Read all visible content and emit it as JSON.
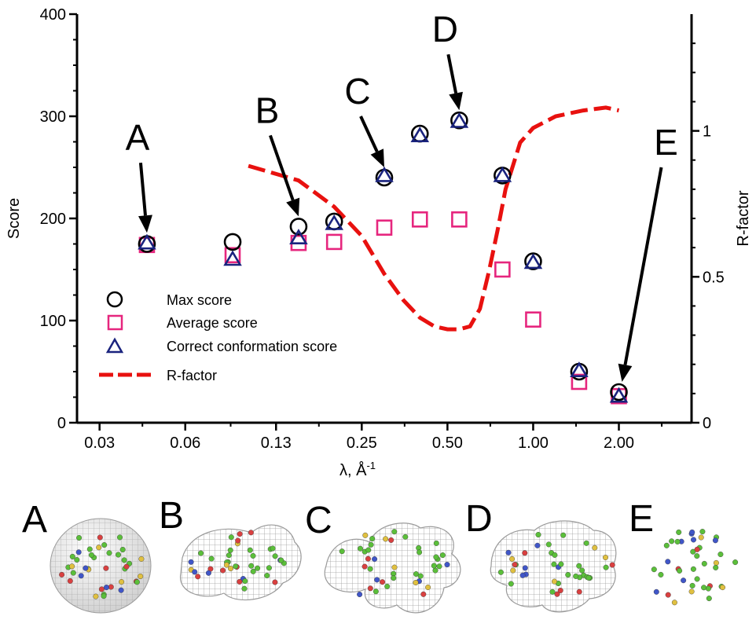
{
  "chart_data": {
    "type": "scatter",
    "x_scale": "log",
    "xlabel": "λ, Å",
    "xlabel_sup": "-1",
    "ylabel": "Score",
    "y2label": "R-factor",
    "ylim": [
      0,
      400
    ],
    "y2lim": [
      0,
      1.4
    ],
    "x_ticks": [
      {
        "label": "0.03",
        "value": 0.03
      },
      {
        "label": "0.06",
        "value": 0.06
      },
      {
        "label": "0.13",
        "value": 0.125
      },
      {
        "label": "0.25",
        "value": 0.25
      },
      {
        "label": "0.50",
        "value": 0.5
      },
      {
        "label": "1.00",
        "value": 1.0
      },
      {
        "label": "2.00",
        "value": 2.0
      }
    ],
    "y_ticks": [
      "0",
      "100",
      "200",
      "300",
      "400"
    ],
    "y2_ticks": [
      "0",
      "0.5",
      "1"
    ],
    "grid": false,
    "legend_position": "bottom-left",
    "series": [
      {
        "name": "Max score",
        "marker": "circle",
        "color": "#000000",
        "points": [
          [
            0.044,
            175
          ],
          [
            0.088,
            177
          ],
          [
            0.15,
            192
          ],
          [
            0.2,
            197
          ],
          [
            0.3,
            240
          ],
          [
            0.4,
            283
          ],
          [
            0.55,
            296
          ],
          [
            0.78,
            242
          ],
          [
            1.0,
            158
          ],
          [
            1.45,
            50
          ],
          [
            2.0,
            30
          ]
        ]
      },
      {
        "name": "Average score",
        "marker": "square",
        "color": "#e6267e",
        "points": [
          [
            0.044,
            174
          ],
          [
            0.088,
            164
          ],
          [
            0.15,
            176
          ],
          [
            0.2,
            177
          ],
          [
            0.3,
            191
          ],
          [
            0.4,
            199
          ],
          [
            0.55,
            199
          ],
          [
            0.78,
            150
          ],
          [
            1.0,
            101
          ],
          [
            1.45,
            40
          ],
          [
            2.0,
            26
          ]
        ]
      },
      {
        "name": "Correct conformation score",
        "marker": "triangle",
        "color": "#1a237e",
        "points": [
          [
            0.044,
            176
          ],
          [
            0.088,
            160
          ],
          [
            0.15,
            181
          ],
          [
            0.2,
            195
          ],
          [
            0.3,
            242
          ],
          [
            0.4,
            281
          ],
          [
            0.55,
            295
          ],
          [
            0.78,
            242
          ],
          [
            1.0,
            157
          ],
          [
            1.45,
            51
          ],
          [
            2.0,
            26
          ]
        ]
      },
      {
        "name": "R-factor",
        "type": "line",
        "axis": "right",
        "color": "#e8110f",
        "points": [
          [
            0.1,
            0.88
          ],
          [
            0.15,
            0.83
          ],
          [
            0.2,
            0.74
          ],
          [
            0.25,
            0.64
          ],
          [
            0.3,
            0.51
          ],
          [
            0.35,
            0.42
          ],
          [
            0.4,
            0.36
          ],
          [
            0.45,
            0.33
          ],
          [
            0.5,
            0.32
          ],
          [
            0.55,
            0.32
          ],
          [
            0.6,
            0.33
          ],
          [
            0.65,
            0.39
          ],
          [
            0.7,
            0.52
          ],
          [
            0.75,
            0.66
          ],
          [
            0.8,
            0.8
          ],
          [
            0.9,
            0.96
          ],
          [
            1.0,
            1.01
          ],
          [
            1.2,
            1.05
          ],
          [
            1.5,
            1.07
          ],
          [
            1.8,
            1.08
          ],
          [
            2.0,
            1.07
          ]
        ]
      }
    ],
    "annotations": [
      {
        "label": "A",
        "x": 0.044,
        "y": 176
      },
      {
        "label": "B",
        "x": 0.15,
        "y": 192
      },
      {
        "label": "C",
        "x": 0.3,
        "y": 240
      },
      {
        "label": "D",
        "x": 0.55,
        "y": 296
      },
      {
        "label": "E",
        "x": 2.0,
        "y": 30
      }
    ]
  },
  "panels": [
    "A",
    "B",
    "C",
    "D",
    "E"
  ]
}
